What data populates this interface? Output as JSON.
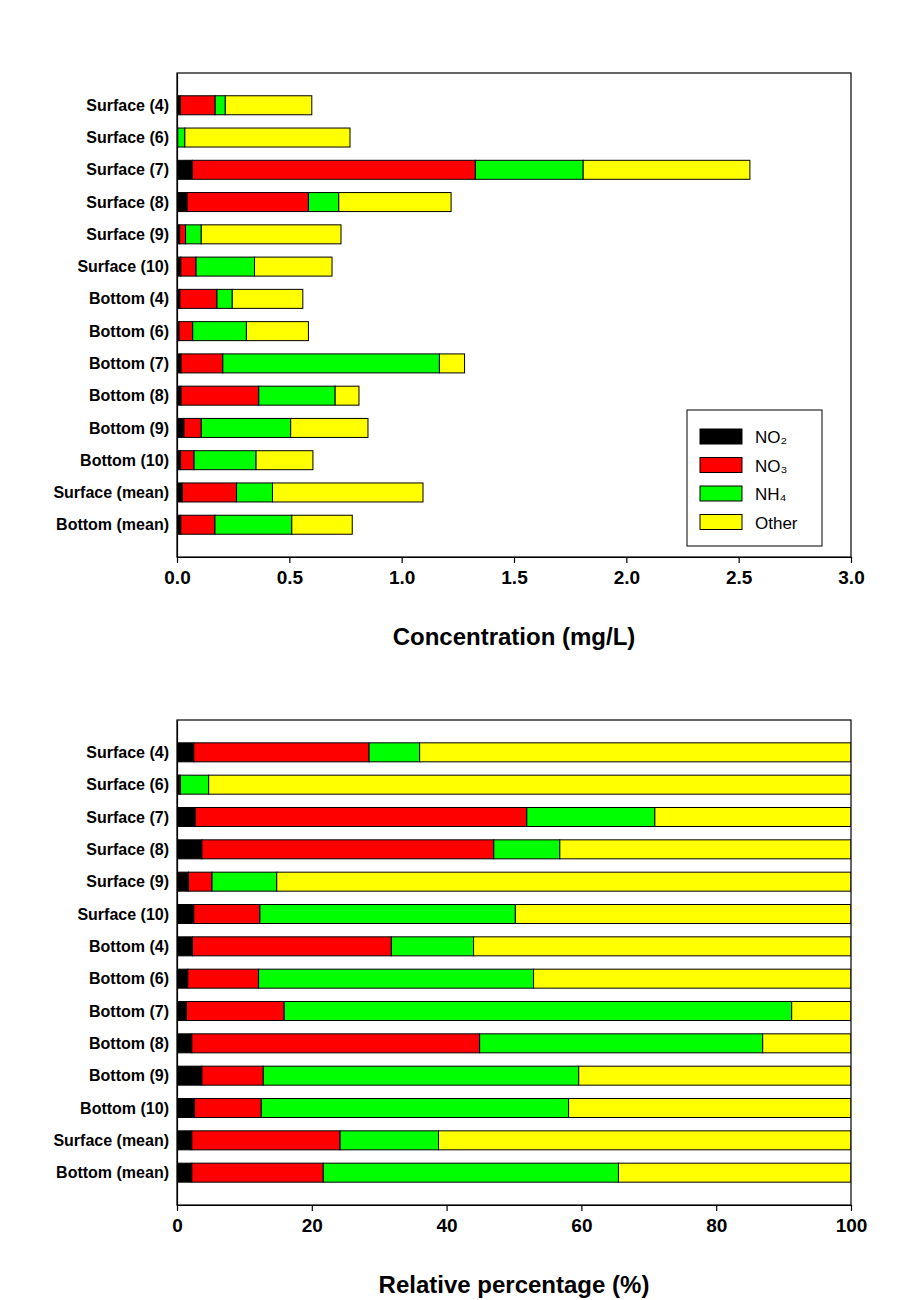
{
  "chart_data": [
    {
      "type": "bar",
      "orientation": "horizontal",
      "stacked": true,
      "legend": "lower right",
      "xlabel": "Concentration (mg/L)",
      "categories": [
        "Surface (4)",
        "Surface (6)",
        "Surface (7)",
        "Surface (8)",
        "Surface (9)",
        "Surface (10)",
        "Bottom (4)",
        "Bottom (6)",
        "Bottom (7)",
        "Bottom (8)",
        "Bottom (9)",
        "Bottom (10)",
        "Surface (mean)",
        "Bottom (mean)"
      ],
      "series": [
        {
          "name": "NO₂",
          "color": "#000000",
          "values": [
            0.015,
            0.002,
            0.068,
            0.045,
            0.012,
            0.017,
            0.013,
            0.009,
            0.018,
            0.018,
            0.031,
            0.016,
            0.024,
            0.017
          ]
        },
        {
          "name": "NO₃",
          "color": "#ff0000",
          "values": [
            0.155,
            0.001,
            1.26,
            0.54,
            0.026,
            0.068,
            0.165,
            0.061,
            0.186,
            0.346,
            0.077,
            0.06,
            0.241,
            0.152
          ]
        },
        {
          "name": "NH₄",
          "color": "#00ff00",
          "values": [
            0.045,
            0.032,
            0.48,
            0.135,
            0.07,
            0.26,
            0.068,
            0.239,
            0.964,
            0.34,
            0.398,
            0.276,
            0.16,
            0.342
          ]
        },
        {
          "name": "Other",
          "color": "#ffff00",
          "values": [
            0.385,
            0.735,
            0.742,
            0.5,
            0.622,
            0.345,
            0.314,
            0.276,
            0.112,
            0.106,
            0.344,
            0.253,
            0.67,
            0.269
          ]
        }
      ],
      "xlim": [
        0,
        3
      ],
      "xticks": [
        {
          "value": 0,
          "label": "0.0"
        },
        {
          "value": 0.5,
          "label": "0.5"
        },
        {
          "value": 1,
          "label": "1.0"
        },
        {
          "value": 1.5,
          "label": "1.5"
        },
        {
          "value": 2,
          "label": "2.0"
        },
        {
          "value": 2.5,
          "label": "2.5"
        },
        {
          "value": 3,
          "label": "3.0"
        }
      ]
    },
    {
      "type": "bar",
      "orientation": "horizontal",
      "stacked": true,
      "legend": "none",
      "xlabel": "Relative percentage (%)",
      "categories": [
        "Surface (4)",
        "Surface (6)",
        "Surface (7)",
        "Surface (8)",
        "Surface (9)",
        "Surface (10)",
        "Bottom (4)",
        "Bottom (6)",
        "Bottom (7)",
        "Bottom (8)",
        "Bottom (9)",
        "Bottom (10)",
        "Surface (mean)",
        "Bottom (mean)"
      ],
      "series": [
        {
          "name": "NO₂",
          "color": "#000000",
          "values": [
            2.5,
            0.3,
            2.7,
            3.7,
            1.7,
            2.5,
            2.3,
            1.6,
            1.4,
            2.2,
            3.7,
            2.6,
            2.2,
            2.2
          ]
        },
        {
          "name": "NO₃",
          "color": "#ff0000",
          "values": [
            26,
            0.2,
            49.2,
            43.3,
            3.5,
            9.8,
            29.5,
            10.5,
            14.5,
            42.7,
            9.1,
            9.9,
            22,
            19.5
          ]
        },
        {
          "name": "NH₄",
          "color": "#00ff00",
          "values": [
            7.5,
            4.2,
            19,
            9.8,
            9.6,
            37.9,
            12.2,
            40.8,
            75.3,
            42,
            46.8,
            45.6,
            14.6,
            43.8
          ]
        },
        {
          "name": "Other",
          "color": "#ffff00",
          "values": [
            64,
            95.3,
            29.1,
            43.2,
            85.2,
            49.8,
            56,
            47.1,
            8.8,
            13.1,
            40.4,
            41.9,
            61.2,
            34.5
          ]
        }
      ],
      "xlim": [
        0,
        100
      ],
      "xticks": [
        0,
        20,
        40,
        60,
        80,
        100
      ]
    }
  ]
}
